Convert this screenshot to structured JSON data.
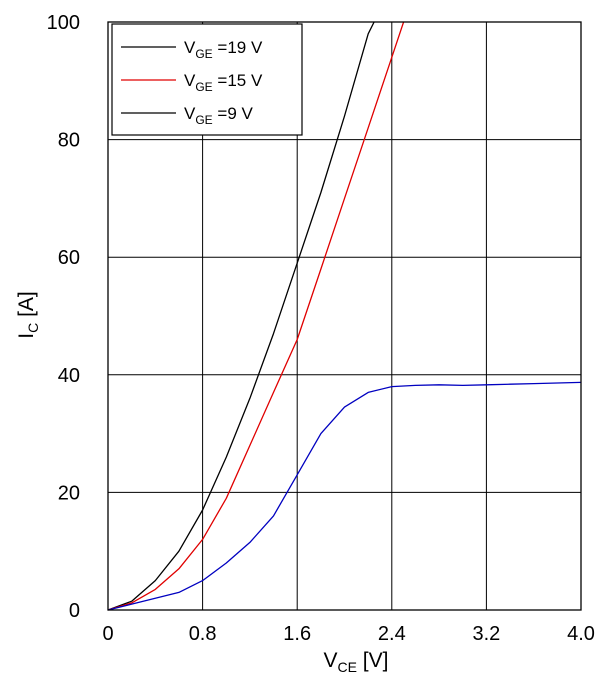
{
  "chart_data": {
    "type": "line",
    "xlabel": {
      "main": "V",
      "sub": "CE",
      "unit": " [V]"
    },
    "ylabel": {
      "main": "I",
      "sub": "C",
      "unit": " [A]"
    },
    "xlim": [
      0,
      4.0
    ],
    "ylim": [
      0,
      100
    ],
    "x_ticks": [
      "0",
      "0.8",
      "1.6",
      "2.4",
      "3.2",
      "4.0"
    ],
    "y_ticks": [
      "0",
      "20",
      "40",
      "60",
      "80",
      "100"
    ],
    "grid": true,
    "legend_position": "top-left",
    "series": [
      {
        "name": "V_GE =19 V",
        "label": {
          "main": "V",
          "sub": "GE",
          "rest": " =19 V"
        },
        "color": "#000000",
        "points": [
          [
            0,
            0
          ],
          [
            0.2,
            1.5
          ],
          [
            0.4,
            5
          ],
          [
            0.6,
            10
          ],
          [
            0.8,
            17
          ],
          [
            1.0,
            26
          ],
          [
            1.2,
            36
          ],
          [
            1.4,
            47
          ],
          [
            1.6,
            59
          ],
          [
            1.8,
            71
          ],
          [
            2.0,
            84
          ],
          [
            2.2,
            98
          ],
          [
            2.25,
            100
          ]
        ]
      },
      {
        "name": "V_GE =15 V",
        "label": {
          "main": "V",
          "sub": "GE",
          "rest": " =15 V"
        },
        "color": "#e00000",
        "points": [
          [
            0,
            0
          ],
          [
            0.2,
            1.2
          ],
          [
            0.4,
            3.5
          ],
          [
            0.6,
            7
          ],
          [
            0.8,
            12
          ],
          [
            1.0,
            19
          ],
          [
            1.2,
            28
          ],
          [
            1.4,
            37
          ],
          [
            1.6,
            46
          ],
          [
            1.8,
            58
          ],
          [
            2.0,
            70
          ],
          [
            2.2,
            82
          ],
          [
            2.4,
            94
          ],
          [
            2.5,
            100
          ]
        ]
      },
      {
        "name": "V_GE =9 V",
        "label": {
          "main": "V",
          "sub": "GE",
          "rest": " =9 V"
        },
        "color": "#0000c0",
        "legend_color": "#000000",
        "points": [
          [
            0,
            0
          ],
          [
            0.2,
            1
          ],
          [
            0.4,
            2
          ],
          [
            0.6,
            3
          ],
          [
            0.8,
            5
          ],
          [
            1.0,
            8
          ],
          [
            1.2,
            11.5
          ],
          [
            1.4,
            16
          ],
          [
            1.6,
            23
          ],
          [
            1.8,
            30
          ],
          [
            2.0,
            34.5
          ],
          [
            2.2,
            37
          ],
          [
            2.4,
            38
          ],
          [
            2.6,
            38.2
          ],
          [
            2.8,
            38.3
          ],
          [
            3.0,
            38.2
          ],
          [
            3.2,
            38.3
          ],
          [
            3.4,
            38.4
          ],
          [
            3.6,
            38.5
          ],
          [
            3.8,
            38.6
          ],
          [
            4.0,
            38.7
          ]
        ]
      }
    ]
  }
}
